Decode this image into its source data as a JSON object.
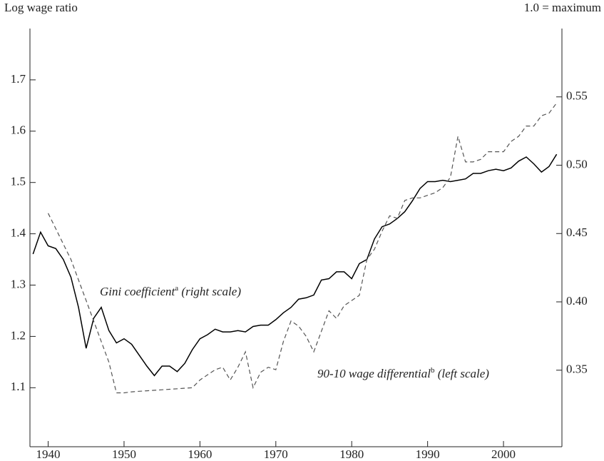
{
  "chart_data": {
    "type": "line",
    "y_label": "Log wage ratio",
    "y2_label": "1.0 = maximum",
    "x": [
      1938,
      1939,
      1940,
      1941,
      1942,
      1943,
      1944,
      1945,
      1946,
      1947,
      1948,
      1949,
      1950,
      1951,
      1952,
      1953,
      1954,
      1955,
      1956,
      1957,
      1958,
      1959,
      1960,
      1961,
      1962,
      1963,
      1964,
      1965,
      1966,
      1967,
      1968,
      1969,
      1970,
      1971,
      1972,
      1973,
      1974,
      1975,
      1976,
      1977,
      1978,
      1979,
      1980,
      1981,
      1982,
      1983,
      1984,
      1985,
      1986,
      1987,
      1988,
      1989,
      1990,
      1991,
      1992,
      1993,
      1994,
      1995,
      1996,
      1997,
      1998,
      1999,
      2000,
      2001,
      2002,
      2003,
      2004,
      2005,
      2006,
      2007
    ],
    "series": [
      {
        "name": "Gini coefficient",
        "color": "#000000",
        "dash": false,
        "axis": "y2",
        "values": [
          0.435,
          0.451,
          0.441,
          0.439,
          0.431,
          0.418,
          0.396,
          0.366,
          0.388,
          0.396,
          0.379,
          0.37,
          0.373,
          0.369,
          0.361,
          0.353,
          0.346,
          0.353,
          0.353,
          0.349,
          0.355,
          0.365,
          0.373,
          0.376,
          0.38,
          0.378,
          0.378,
          0.379,
          0.378,
          0.382,
          0.383,
          0.383,
          0.387,
          0.392,
          0.396,
          0.402,
          0.403,
          0.405,
          0.416,
          0.417,
          0.422,
          0.422,
          0.417,
          0.428,
          0.431,
          0.446,
          0.455,
          0.457,
          0.461,
          0.466,
          0.474,
          0.483,
          0.488,
          0.488,
          0.489,
          0.488,
          0.489,
          0.49,
          0.494,
          0.494,
          0.496,
          0.497,
          0.496,
          0.498,
          0.503,
          0.506,
          0.501,
          0.495,
          0.499,
          0.508
        ]
      },
      {
        "name": "90-10 wage differential",
        "color": "#555555",
        "dash": true,
        "values": [
          null,
          null,
          1.44,
          1.41,
          1.38,
          1.35,
          1.31,
          1.27,
          1.23,
          1.19,
          1.15,
          1.09,
          1.09,
          1.092,
          1.093,
          1.094,
          1.095,
          1.096,
          1.097,
          1.098,
          1.099,
          1.1,
          1.115,
          1.125,
          1.135,
          1.14,
          1.115,
          1.14,
          1.17,
          1.1,
          1.13,
          1.14,
          1.135,
          1.19,
          1.23,
          1.22,
          1.2,
          1.17,
          1.21,
          1.25,
          1.235,
          1.26,
          1.27,
          1.28,
          1.35,
          1.37,
          1.405,
          1.435,
          1.43,
          1.465,
          1.47,
          1.47,
          1.475,
          1.48,
          1.49,
          1.51,
          1.59,
          1.54,
          1.54,
          1.545,
          1.56,
          1.56,
          1.56,
          1.58,
          1.59,
          1.61,
          1.61,
          1.63,
          1.635,
          1.655
        ]
      }
    ],
    "annotations": [
      {
        "series": 0,
        "sup": "a",
        "note": "(right scale)"
      },
      {
        "series": 1,
        "sup": "b",
        "note": "(left scale)"
      }
    ],
    "xlim": [
      1937.6,
      2007.7
    ],
    "xticks": [
      1940,
      1950,
      1960,
      1970,
      1980,
      1990,
      2000
    ],
    "ylim": [
      0.985,
      1.8
    ],
    "yticks": [
      1.1,
      1.2,
      1.3,
      1.4,
      1.5,
      1.6,
      1.7
    ],
    "y2lim": [
      0.294,
      0.6
    ],
    "y2ticks": [
      0.35,
      0.4,
      0.45,
      0.5,
      0.55
    ],
    "grid": false
  }
}
